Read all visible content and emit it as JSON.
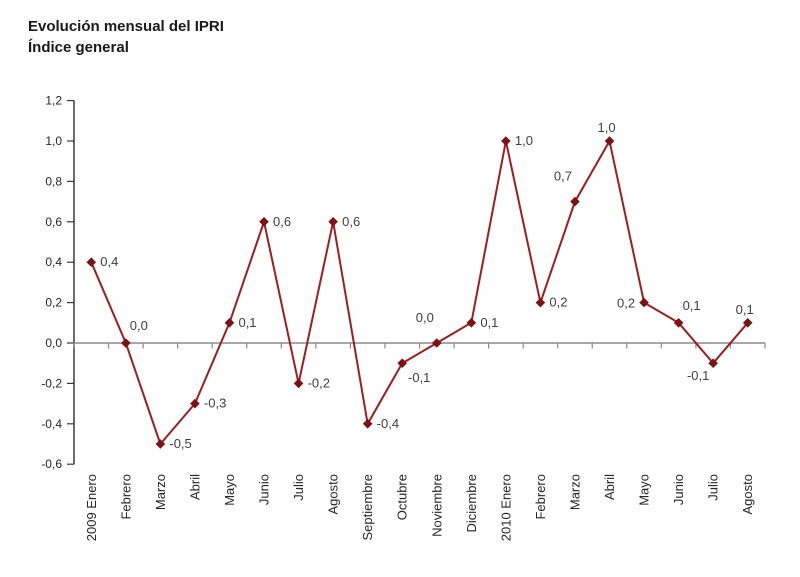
{
  "header": {
    "title": "Evolución mensual del IPRI",
    "subtitle": "Índice general"
  },
  "chart_data": {
    "type": "line",
    "title": "Evolución mensual del IPRI",
    "subtitle": "Índice general",
    "categories": [
      "2009 Enero",
      "Febrero",
      "Marzo",
      "Abril",
      "Mayo",
      "Junio",
      "Julio",
      "Agosto",
      "Septiembre",
      "Octubre",
      "Noviembre",
      "Diciembre",
      "2010 Enero",
      "Febrero",
      "Marzo",
      "Abril",
      "Mayo",
      "Junio",
      "Julio",
      "Agosto"
    ],
    "series": [
      {
        "name": "Índice general",
        "values": [
          0.4,
          0.0,
          -0.5,
          -0.3,
          0.1,
          0.6,
          -0.2,
          0.6,
          -0.4,
          -0.1,
          0.0,
          0.1,
          1.0,
          0.2,
          0.7,
          1.0,
          0.2,
          0.1,
          -0.1,
          0.1
        ]
      }
    ],
    "point_labels": [
      "0,4",
      "0,0",
      "-0,5",
      "-0,3",
      "0,1",
      "0,6",
      "-0,2",
      "0,6",
      "-0,4",
      "-0,1",
      "0,0",
      "0,1",
      "1,0",
      "0,2",
      "0,7",
      "1,0",
      "0,2",
      "0,1",
      "-0,1",
      "0,1"
    ],
    "point_label_positions": [
      "right",
      "above-right",
      "right",
      "right",
      "right",
      "right",
      "right",
      "right",
      "right",
      "below-right",
      "above-left",
      "right",
      "right",
      "right",
      "above-left",
      "above",
      "left",
      "above-right",
      "below-left",
      "above"
    ],
    "yticks": [
      "1,2",
      "1,0",
      "0,8",
      "0,6",
      "0,4",
      "0,2",
      "0,0",
      "-0,2",
      "-0,4",
      "-0,6"
    ],
    "ytick_values": [
      1.2,
      1.0,
      0.8,
      0.6,
      0.4,
      0.2,
      0.0,
      -0.2,
      -0.4,
      -0.6
    ],
    "ylim": [
      -0.6,
      1.2
    ],
    "grid": false,
    "legend": "none",
    "marker": "diamond",
    "colors": {
      "line": "#a01d1d",
      "marker": "#7d1113",
      "data_label": "#3f3f3f",
      "axis_vertical": "#3a3a3a",
      "axis_horizontal": "#8c8c8c",
      "tick_label": "#262626"
    }
  }
}
